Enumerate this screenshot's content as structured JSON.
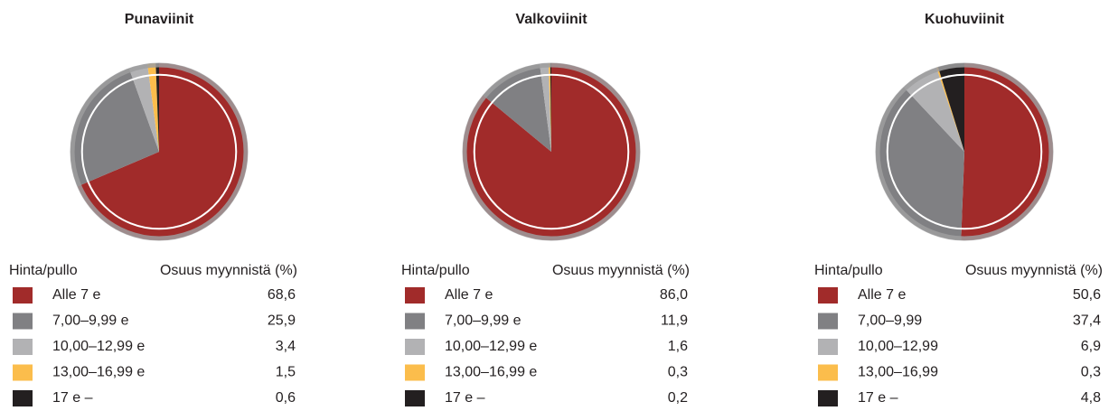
{
  "chart_data": [
    {
      "type": "pie",
      "title": "Punaviinit",
      "legend_title": "Hinta/pullo",
      "value_header": "Osuus myynnistä (%)",
      "categories": [
        "Alle 7 e",
        "7,00–9,99 e",
        "10,00–12,99 e",
        "13,00–16,99 e",
        "17 e –"
      ],
      "values": [
        68.6,
        25.9,
        3.4,
        1.5,
        0.6
      ],
      "value_labels": [
        "68,6",
        "25,9",
        "3,4",
        "1,5",
        "0,6"
      ],
      "colors": [
        "#a12b2a",
        "#808083",
        "#b2b2b4",
        "#fbbd4c",
        "#231f20"
      ]
    },
    {
      "type": "pie",
      "title": "Valkoviinit",
      "legend_title": "Hinta/pullo",
      "value_header": "Osuus myynnistä (%)",
      "categories": [
        "Alle 7 e",
        "7,00–9,99 e",
        "10,00–12,99 e",
        "13,00–16,99 e",
        "17 e –"
      ],
      "values": [
        86.0,
        11.9,
        1.6,
        0.3,
        0.2
      ],
      "value_labels": [
        "86,0",
        "11,9",
        "1,6",
        "0,3",
        "0,2"
      ],
      "colors": [
        "#a12b2a",
        "#808083",
        "#b2b2b4",
        "#fbbd4c",
        "#231f20"
      ]
    },
    {
      "type": "pie",
      "title": "Kuohuviinit",
      "legend_title": "Hinta/pullo",
      "value_header": "Osuus myynnistä (%)",
      "categories": [
        "Alle 7 e",
        "7,00–9,99",
        "10,00–12,99",
        "13,00–16,99",
        "17 e –"
      ],
      "values": [
        50.6,
        37.4,
        6.9,
        0.3,
        4.8
      ],
      "value_labels": [
        "50,6",
        "37,4",
        "6,9",
        "0,3",
        "4,8"
      ],
      "colors": [
        "#a12b2a",
        "#808083",
        "#b2b2b4",
        "#fbbd4c",
        "#231f20"
      ]
    }
  ]
}
